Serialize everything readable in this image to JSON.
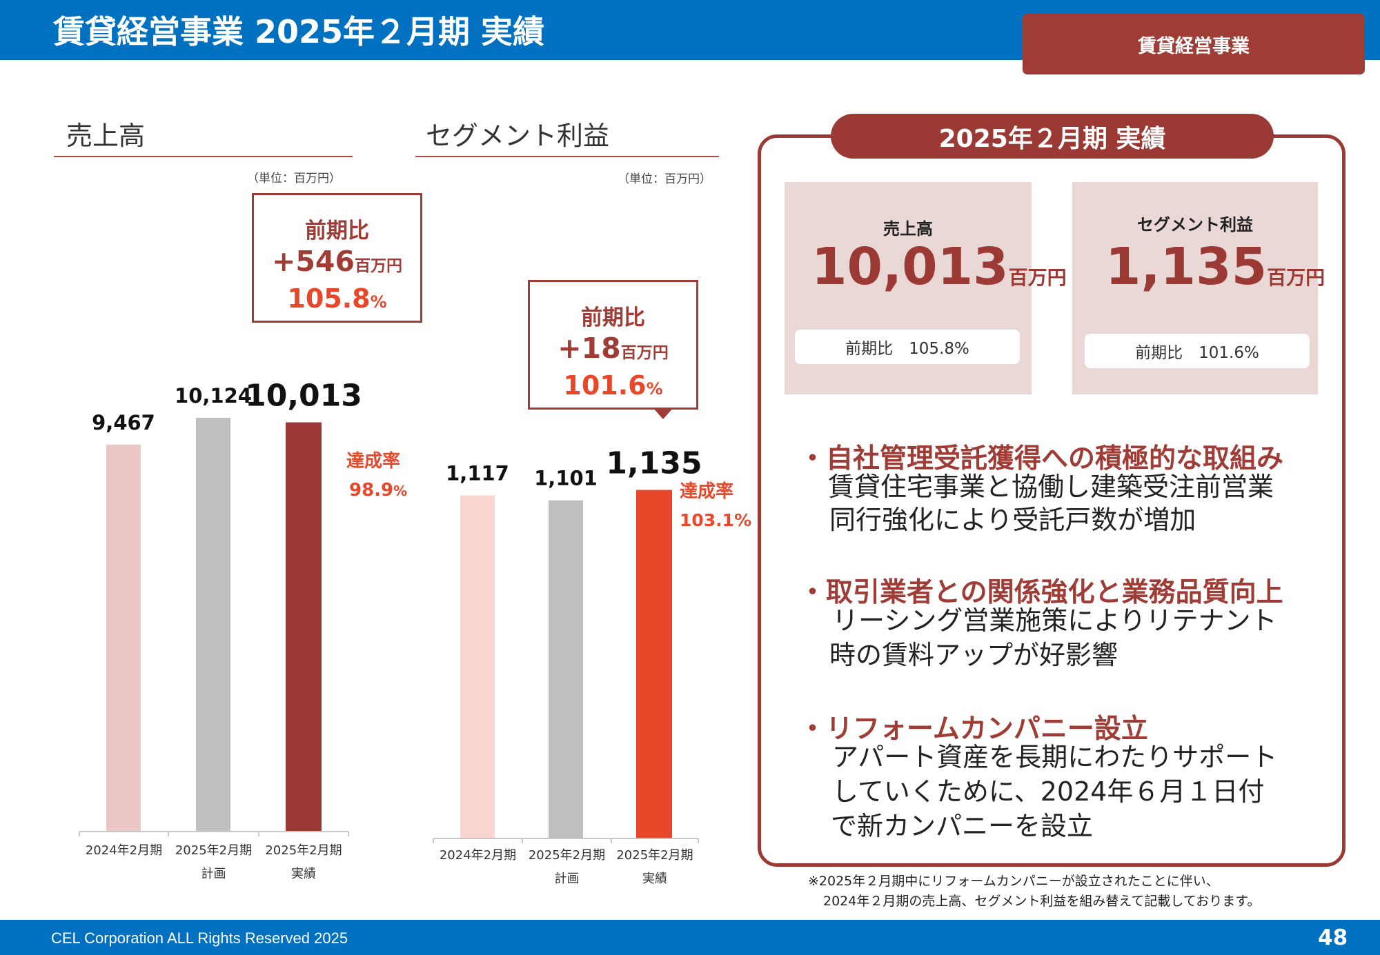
{
  "header": {
    "title": "賃貸経営事業 2025年２月期 実績",
    "badge": "賃貸経営事業"
  },
  "footer": {
    "copyright": "CEL Corporation ALL Rights Reserved 2025",
    "page": "48"
  },
  "sales": {
    "title": "売上高",
    "unit": "（単位：百万円）",
    "callout": {
      "title": "前期比",
      "diff": "+546",
      "diff_unit": "百万円",
      "ratio": "105.8",
      "ratio_unit": "%"
    },
    "achievement": {
      "label": "達成率",
      "value": "98.9",
      "unit": "%"
    }
  },
  "segment": {
    "title": "セグメント利益",
    "unit": "（単位：百万円）",
    "callout": {
      "title": "前期比",
      "diff": "+18",
      "diff_unit": "百万円",
      "ratio": "101.6",
      "ratio_unit": "%"
    },
    "achievement": {
      "label": "達成率",
      "value": "103.1%"
    }
  },
  "chart_data": [
    {
      "type": "bar",
      "title": "売上高",
      "categories": [
        "2024年2月期",
        "2025年2月期 計画",
        "2025年2月期 実績"
      ],
      "category_lines": [
        [
          "2024年2月期"
        ],
        [
          "2025年2月期",
          "計画"
        ],
        [
          "2025年2月期",
          "実績"
        ]
      ],
      "values": [
        9467,
        10124,
        10013
      ],
      "value_labels": [
        "9,467",
        "10,124",
        "10,013"
      ],
      "colors": [
        "#eac7c4",
        "#bfbfbf",
        "#9b3a34"
      ],
      "ylim": [
        0,
        11000
      ]
    },
    {
      "type": "bar",
      "title": "セグメント利益",
      "categories": [
        "2024年2月期",
        "2025年2月期 計画",
        "2025年2月期 実績"
      ],
      "category_lines": [
        [
          "2024年2月期"
        ],
        [
          "2025年2月期",
          "計画"
        ],
        [
          "2025年2月期",
          "実績"
        ]
      ],
      "values": [
        1117,
        1101,
        1135
      ],
      "value_labels": [
        "1,117",
        "1,101",
        "1,135"
      ],
      "colors": [
        "#fad4cf",
        "#bfbfbf",
        "#e8472a"
      ],
      "ylim": [
        0,
        1190
      ]
    }
  ],
  "summary": {
    "tab": "2025年２月期 実績",
    "sales": {
      "label": "売上高",
      "value": "10,013",
      "unit": "百万円",
      "sub": "前期比　105.8%"
    },
    "segment": {
      "label": "セグメント利益",
      "value": "1,135",
      "unit": "百万円",
      "sub": "前期比　101.6%"
    },
    "bullets": [
      {
        "head": "自社管理受託獲得への積極的な取組み",
        "lines": [
          "賃貸住宅事業と協働し建築受注前営業",
          "同行強化により受託戸数が増加"
        ]
      },
      {
        "head": "取引業者との関係強化と業務品質向上",
        "lines": [
          "リーシング営業施策によりリテナント",
          "時の賃料アップが好影響"
        ]
      },
      {
        "head": "リフォームカンパニー設立",
        "lines": [
          "アパート資産を長期にわたりサポート",
          "していくために、2024年６月１日付",
          "で新カンパニーを設立"
        ]
      }
    ],
    "note": [
      "※2025年２月期中にリフォームカンパニーが設立されたことに伴い、",
      "2024年２月期の売上高、セグメント利益を組み替えて記載しております。"
    ]
  }
}
